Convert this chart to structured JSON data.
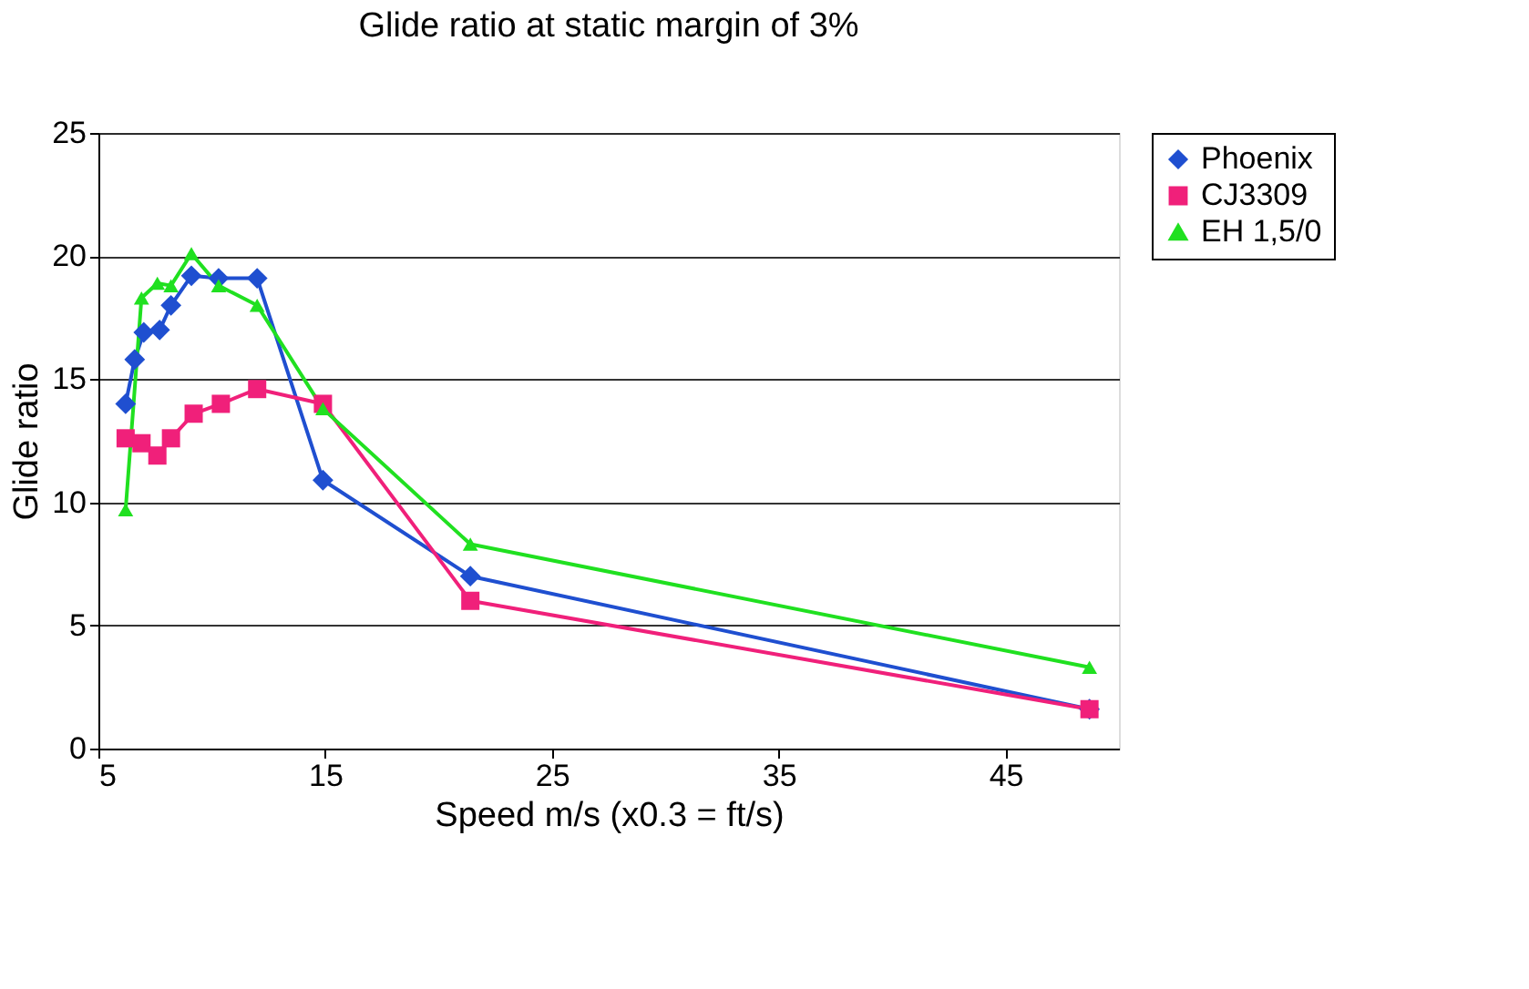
{
  "chart_data": {
    "type": "line",
    "title": "Glide ratio at static margin of 3%",
    "xlabel": "Speed m/s (x0.3 = ft/s)",
    "ylabel": "Glide ratio",
    "xlim": [
      5,
      50
    ],
    "xticks": [
      5,
      15,
      25,
      35,
      45
    ],
    "ylim": [
      0,
      25
    ],
    "yticks": [
      0,
      5,
      10,
      15,
      20,
      25
    ],
    "grid": "y",
    "legend": "right",
    "series": [
      {
        "name": "Phoenix",
        "color": "#1f4fd0",
        "marker": "diamond",
        "x": [
          6.2,
          6.6,
          7.0,
          7.7,
          8.2,
          9.1,
          10.3,
          12.0,
          14.9,
          21.4,
          48.7
        ],
        "values": [
          14.0,
          15.8,
          16.9,
          17.0,
          18.0,
          19.2,
          19.1,
          19.1,
          10.9,
          7.0,
          1.6
        ]
      },
      {
        "name": "CJ3309",
        "color": "#f0207a",
        "marker": "square",
        "x": [
          6.2,
          6.9,
          7.6,
          8.2,
          9.2,
          10.4,
          12.0,
          14.9,
          21.4,
          48.7
        ],
        "values": [
          12.6,
          12.4,
          11.9,
          12.6,
          13.6,
          14.0,
          14.6,
          14.0,
          6.0,
          1.6
        ]
      },
      {
        "name": "EH 1,5/0",
        "color": "#20e020",
        "marker": "triangle",
        "x": [
          6.2,
          6.9,
          7.6,
          8.2,
          9.1,
          10.3,
          12.0,
          14.9,
          21.4,
          48.7
        ],
        "values": [
          9.7,
          18.3,
          18.9,
          18.8,
          20.1,
          18.8,
          18.0,
          13.8,
          8.3,
          3.3
        ]
      }
    ]
  }
}
